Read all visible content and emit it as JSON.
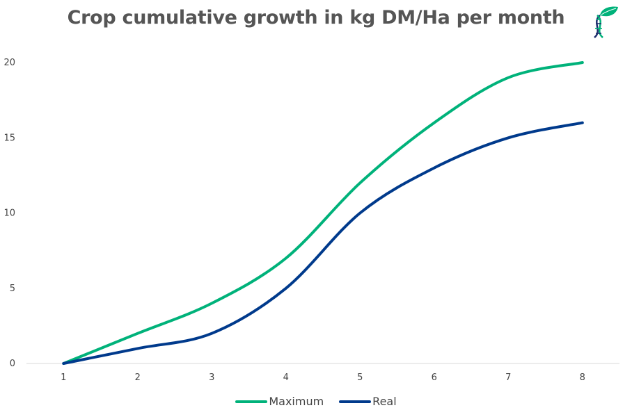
{
  "chart_data": {
    "type": "line",
    "title": "Crop cumulative growth in kg DM/Ha per month",
    "xlabel": "",
    "ylabel": "",
    "x": [
      1,
      2,
      3,
      4,
      5,
      6,
      7,
      8
    ],
    "xlim": [
      0.5,
      8.5
    ],
    "ylim": [
      0,
      20
    ],
    "yticks": [
      0,
      5,
      10,
      15,
      20
    ],
    "grid": false,
    "smooth": true,
    "legend": "bottom-center",
    "series": [
      {
        "name": "Maximum",
        "color": "#00b27a",
        "values": [
          0,
          2,
          4,
          7,
          12,
          16,
          19,
          20
        ]
      },
      {
        "name": "Real",
        "color": "#003a8c",
        "values": [
          0,
          1,
          2,
          5,
          10,
          13,
          15,
          16
        ]
      }
    ]
  },
  "logo": {
    "icon": "dna-leaf-icon",
    "colors": [
      "#00b27a",
      "#1f2f6e"
    ]
  }
}
